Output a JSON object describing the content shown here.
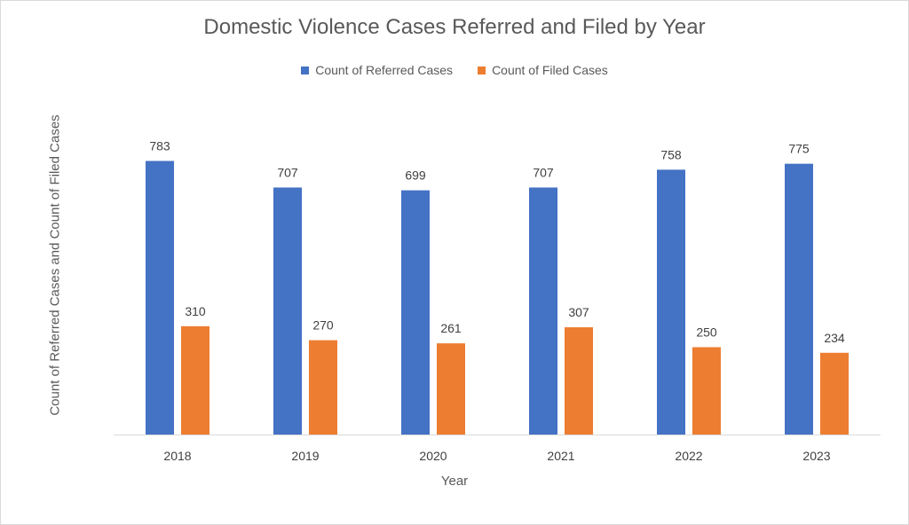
{
  "chart_data": {
    "type": "bar",
    "title": "Domestic Violence Cases Referred and Filed by Year",
    "xlabel": "Year",
    "ylabel": "Count of Referred Cases and Count of Filed Cases",
    "categories": [
      "2018",
      "2019",
      "2020",
      "2021",
      "2022",
      "2023"
    ],
    "series": [
      {
        "name": "Count of Referred Cases",
        "color": "#4472C4",
        "values": [
          783,
          707,
          699,
          707,
          758,
          775
        ]
      },
      {
        "name": "Count of Filed Cases",
        "color": "#ED7D31",
        "values": [
          310,
          270,
          261,
          307,
          250,
          234
        ]
      }
    ],
    "ylim": [
      0,
      800
    ],
    "grid": false,
    "data_labels": true,
    "legend_position": "top"
  }
}
